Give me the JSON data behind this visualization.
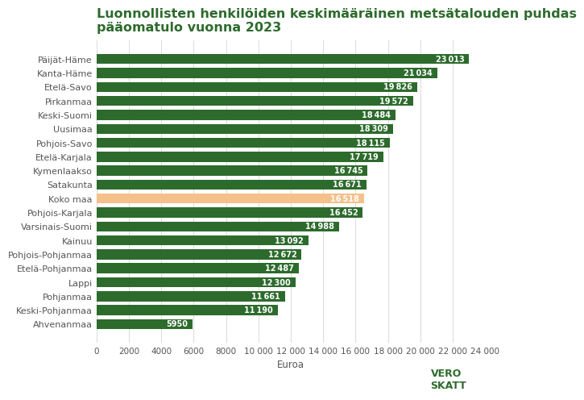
{
  "title": "Luonnollisten henkilöiden keskimääräinen metsätalouden puhdas\npääomatulo vuonna 2023",
  "categories": [
    "Päijät-Häme",
    "Kanta-Häme",
    "Etelä-Savo",
    "Pirkanmaa",
    "Keski-Suomi",
    "Uusimaa",
    "Pohjois-Savo",
    "Etelä-Karjala",
    "Kymenlaakso",
    "Satakunta",
    "Koko maa",
    "Pohjois-Karjala",
    "Varsinais-Suomi",
    "Kainuu",
    "Pohjois-Pohjanmaa",
    "Etelä-Pohjanmaa",
    "Lappi",
    "Pohjanmaa",
    "Keski-Pohjanmaa",
    "Ahvenanmaa"
  ],
  "values": [
    23013,
    21034,
    19826,
    19572,
    18484,
    18309,
    18115,
    17719,
    16745,
    16671,
    16518,
    16452,
    14988,
    13092,
    12672,
    12487,
    12300,
    11661,
    11190,
    5950
  ],
  "bar_colors": [
    "#2d6b2d",
    "#2d6b2d",
    "#2d6b2d",
    "#2d6b2d",
    "#2d6b2d",
    "#2d6b2d",
    "#2d6b2d",
    "#2d6b2d",
    "#2d6b2d",
    "#2d6b2d",
    "#f5c08a",
    "#2d6b2d",
    "#2d6b2d",
    "#2d6b2d",
    "#2d6b2d",
    "#2d6b2d",
    "#2d6b2d",
    "#2d6b2d",
    "#2d6b2d",
    "#2d6b2d"
  ],
  "xlabel": "Euroa",
  "xlim": [
    0,
    24000
  ],
  "xticks": [
    0,
    2000,
    4000,
    6000,
    8000,
    10000,
    12000,
    14000,
    16000,
    18000,
    20000,
    22000,
    24000
  ],
  "xtick_labels": [
    "0",
    "2000",
    "4000",
    "6000",
    "8000",
    "10 000",
    "12 000",
    "14 000",
    "16 000",
    "18 000",
    "20 000",
    "22 000",
    "24 000"
  ],
  "value_label_color": "#ffffff",
  "value_label_fontsize": 7.0,
  "title_fontsize": 11.5,
  "title_color": "#2d6b2d",
  "background_color": "#ffffff",
  "bar_height": 0.72,
  "ytick_fontsize": 8.0,
  "xtick_fontsize": 7.5,
  "xlabel_fontsize": 8.5,
  "grid_color": "#cccccc",
  "logo_box_color": "#2d6b2d",
  "logo_text_color": "#2d6b2d"
}
